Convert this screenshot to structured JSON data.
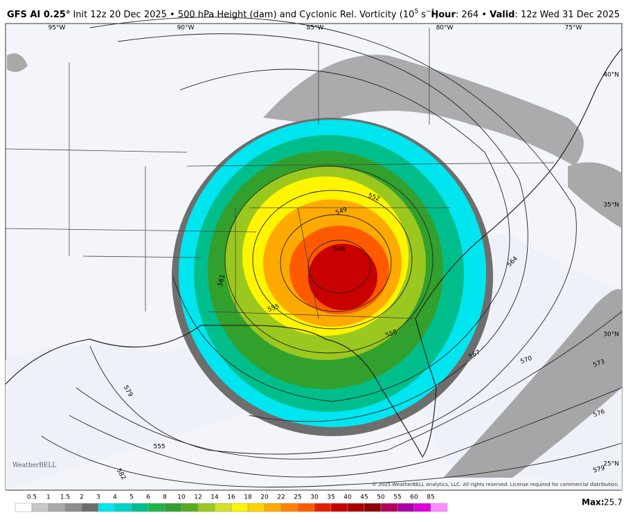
{
  "header": {
    "model": "GFS AI 0.25°",
    "description": "Init 12z 20 Dec 2025 • 500 hPa Height (dam) and Cyclonic Rel. Vorticity (10",
    "exp1": "5",
    "unit": " s",
    "exp2": "−1",
    "close": ")",
    "hour_label": "Hour",
    "hour_value": ": 264 • ",
    "valid_label": "Valid",
    "valid_value": ": 12z Wed 31 Dec 2025"
  },
  "map": {
    "longitudes": [
      "95°W",
      "90°W",
      "85°W",
      "80°W",
      "75°W"
    ],
    "latitudes": [
      "40°N",
      "35°N",
      "30°N",
      "25°N"
    ],
    "contour_labels": [
      "546",
      "549",
      "552",
      "555",
      "555",
      "558",
      "561",
      "564",
      "567",
      "570",
      "573",
      "576",
      "579",
      "579",
      "582"
    ],
    "logo": "WeatherBELL",
    "copyright": "© 2025 WeatherBELL Analytics, LLC. All rights reserved. License required for commercial distribution."
  },
  "colorbar": {
    "labels": [
      "0.5",
      "1",
      "1.5",
      "2",
      "3",
      "4",
      "5",
      "6",
      "8",
      "10",
      "12",
      "14",
      "16",
      "18",
      "20",
      "22",
      "25",
      "30",
      "35",
      "40",
      "45",
      "50",
      "55",
      "60",
      "85"
    ],
    "colors": [
      "#ffffff",
      "#c8c8c8",
      "#a9a9a9",
      "#8c8c8c",
      "#6e6e6e",
      "#00e6f0",
      "#00d2c8",
      "#00be8c",
      "#1eb44b",
      "#32a02d",
      "#5aaa1e",
      "#9bc81e",
      "#d2e123",
      "#fff500",
      "#ffd200",
      "#ffaa00",
      "#ff8200",
      "#ff5a00",
      "#e61e00",
      "#c80000",
      "#aa0000",
      "#8c0000",
      "#b4005a",
      "#aa00aa",
      "#dc00dc",
      "#ff8cff"
    ]
  },
  "max": {
    "label": "Max:",
    "value": "25.7"
  }
}
